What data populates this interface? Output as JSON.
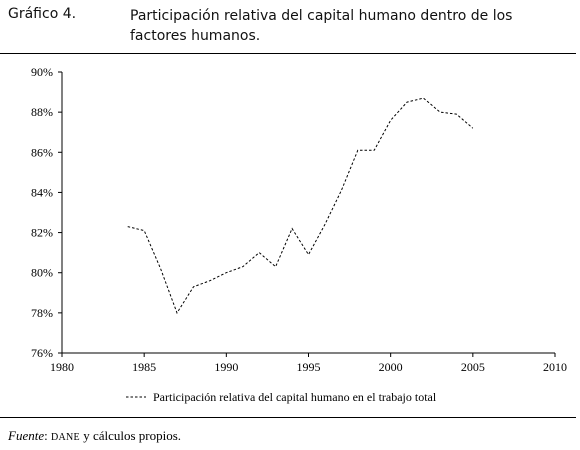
{
  "figure": {
    "number": "Gráfico 4.",
    "title": "Participación relativa del capital humano dentro de los factores humanos."
  },
  "source": {
    "label": "Fuente",
    "colon": ":",
    "org": "DANE",
    "rest": " y cálculos propios."
  },
  "chart_data": {
    "type": "line",
    "title": "Participación relativa del capital humano dentro de los factores humanos.",
    "xlabel": "",
    "ylabel": "",
    "xlim": [
      1980,
      2010
    ],
    "ylim": [
      76,
      90
    ],
    "x_ticks": [
      "1980",
      "1985",
      "1990",
      "1995",
      "2000",
      "2005",
      "2010"
    ],
    "y_ticks": [
      "76%",
      "78%",
      "80%",
      "82%",
      "84%",
      "86%",
      "88%",
      "90%"
    ],
    "legend_position": "bottom",
    "grid": false,
    "series": [
      {
        "name": "Participación relativa del capital humano en el trabajo total",
        "style": "dashed",
        "color": "#000000",
        "x": [
          1984,
          1985,
          1986,
          1987,
          1988,
          1989,
          1990,
          1991,
          1992,
          1993,
          1994,
          1995,
          1996,
          1997,
          1998,
          1999,
          2000,
          2001,
          2002,
          2003,
          2004,
          2005
        ],
        "y": [
          82.3,
          82.1,
          80.2,
          78.0,
          79.3,
          79.6,
          80.0,
          80.3,
          81.0,
          80.3,
          82.2,
          80.9,
          82.4,
          84.1,
          86.1,
          86.1,
          87.6,
          88.5,
          88.7,
          88.0,
          87.9,
          87.2
        ]
      }
    ]
  }
}
